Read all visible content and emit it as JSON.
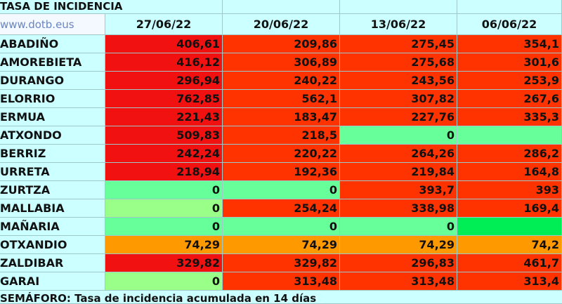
{
  "sheet": {
    "title": "TASA DE INCIDENCIA",
    "link": "www.dotb.eus",
    "dates": [
      "27/06/22",
      "20/06/22",
      "13/06/22",
      "06/06/22"
    ],
    "rows": [
      {
        "name": "ABADIÑO",
        "cells": [
          "406,61",
          "209,86",
          "275,45",
          "354,1"
        ],
        "colors": [
          "#f21111",
          "#ff3300",
          "#ff3300",
          "#ff3300"
        ]
      },
      {
        "name": "AMOREBIETA",
        "cells": [
          "416,12",
          "306,89",
          "275,68",
          "301,6"
        ],
        "colors": [
          "#f21111",
          "#ff3300",
          "#ff3300",
          "#ff3300"
        ]
      },
      {
        "name": "DURANGO",
        "cells": [
          "296,94",
          "240,22",
          "243,56",
          "253,9"
        ],
        "colors": [
          "#f21111",
          "#ff3300",
          "#ff3300",
          "#ff3300"
        ]
      },
      {
        "name": "ELORRIO",
        "cells": [
          "762,85",
          "562,1",
          "307,82",
          "267,6"
        ],
        "colors": [
          "#f21111",
          "#ff3300",
          "#ff3300",
          "#ff3300"
        ]
      },
      {
        "name": "ERMUA",
        "cells": [
          "221,43",
          "183,47",
          "227,76",
          "335,3"
        ],
        "colors": [
          "#f21111",
          "#ff3300",
          "#ff3300",
          "#ff3300"
        ]
      },
      {
        "name": "ATXONDO",
        "cells": [
          "509,83",
          "218,5",
          "0",
          ""
        ],
        "colors": [
          "#f21111",
          "#ff3300",
          "#66ff99",
          "#66ff99"
        ]
      },
      {
        "name": "BERRIZ",
        "cells": [
          "242,24",
          "220,22",
          "264,26",
          "286,2"
        ],
        "colors": [
          "#f21111",
          "#ff3300",
          "#ff3300",
          "#ff3300"
        ]
      },
      {
        "name": "URRETA",
        "cells": [
          "218,94",
          "192,36",
          "219,84",
          "164,8"
        ],
        "colors": [
          "#f21111",
          "#ff3300",
          "#ff3300",
          "#ff3300"
        ]
      },
      {
        "name": "ZURTZA",
        "cells": [
          "0",
          "0",
          "393,7",
          "393"
        ],
        "colors": [
          "#66ff99",
          "#66ff99",
          "#ff3300",
          "#ff3300"
        ]
      },
      {
        "name": "MALLABIA",
        "cells": [
          "0",
          "254,24",
          "338,98",
          "169,4"
        ],
        "colors": [
          "#99ff88",
          "#ff3300",
          "#ff3300",
          "#ff3300"
        ]
      },
      {
        "name": "MAÑARIA",
        "cells": [
          "0",
          "0",
          "0",
          ""
        ],
        "colors": [
          "#66ff99",
          "#66ff99",
          "#66ff99",
          "#00ee55"
        ]
      },
      {
        "name": "OTXANDIO",
        "cells": [
          "74,29",
          "74,29",
          "74,29",
          "74,2"
        ],
        "colors": [
          "#ff9900",
          "#ff9900",
          "#ff9900",
          "#ff9900"
        ]
      },
      {
        "name": "ZALDIBAR",
        "cells": [
          "329,82",
          "329,82",
          "296,83",
          "461,7"
        ],
        "colors": [
          "#f21111",
          "#ff3300",
          "#ff3300",
          "#ff3300"
        ]
      },
      {
        "name": "GARAI",
        "cells": [
          "0",
          "313,48",
          "313,48",
          "313,4"
        ],
        "colors": [
          "#99ff88",
          "#ff3300",
          "#ff3300",
          "#ff3300"
        ]
      }
    ],
    "footer": "SEMÁFORO: Tasa de incidencia acumulada en 14 días"
  }
}
